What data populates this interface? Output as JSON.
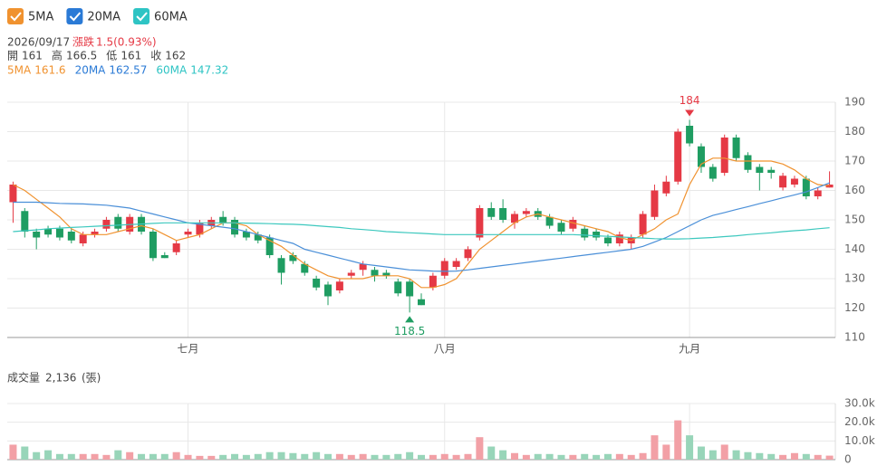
{
  "legend": [
    "5MA",
    "20MA",
    "60MA"
  ],
  "header": {
    "date": "2026/09/17",
    "change_label": "漲跌",
    "change": "1.5(0.93%)",
    "ohlc": [
      {
        "label": "開",
        "value": 161
      },
      {
        "label": "高",
        "value": 166.5
      },
      {
        "label": "低",
        "value": 161
      },
      {
        "label": "收",
        "value": 162
      }
    ],
    "ma": [
      {
        "label": "5MA",
        "value": 161.6,
        "color": "#f0922f"
      },
      {
        "label": "20MA",
        "value": 162.57,
        "color": "#2a7ad6"
      },
      {
        "label": "60MA",
        "value": 147.32,
        "color": "#2ec4c4"
      }
    ]
  },
  "chart_data": [
    {
      "type": "candlestick",
      "categories": [
        null,
        null,
        null,
        null,
        null,
        null,
        null,
        null,
        null,
        null,
        null,
        null,
        null,
        null,
        null,
        "七月",
        null,
        null,
        null,
        null,
        null,
        null,
        null,
        null,
        null,
        null,
        null,
        null,
        null,
        null,
        null,
        null,
        null,
        null,
        null,
        null,
        null,
        "八月",
        null,
        null,
        null,
        null,
        null,
        null,
        null,
        null,
        null,
        null,
        null,
        null,
        null,
        null,
        null,
        null,
        null,
        null,
        null,
        null,
        "九月",
        null,
        null,
        null,
        null,
        null,
        null,
        null,
        null,
        null,
        null,
        null,
        null
      ],
      "open": [
        156,
        153,
        146,
        147,
        147,
        146,
        142,
        145,
        147,
        151,
        146,
        151,
        146,
        138,
        139,
        145,
        145,
        148,
        151,
        150,
        146,
        145,
        144,
        137,
        138,
        135,
        130,
        128,
        126,
        131,
        133,
        133,
        132,
        129,
        129,
        123,
        127,
        131,
        134,
        137,
        144,
        154,
        154,
        149,
        152,
        153,
        151,
        149,
        147,
        147,
        146,
        144,
        142,
        142,
        145,
        151,
        159,
        163,
        182,
        175,
        168,
        166,
        178,
        172,
        168,
        167,
        161,
        162,
        164,
        158,
        161
      ],
      "high": [
        163,
        154,
        147,
        148,
        148,
        147,
        146,
        147,
        151,
        152,
        152,
        152,
        147,
        139,
        143,
        147,
        150,
        151,
        153,
        151,
        147,
        146,
        145,
        138,
        139,
        136,
        131,
        129,
        130,
        133,
        136,
        134,
        133,
        130,
        130,
        125,
        132,
        137,
        137,
        141,
        155,
        156,
        157,
        153,
        154,
        154,
        152,
        150,
        151,
        148,
        147,
        145,
        146,
        145,
        153,
        162,
        165,
        181,
        184,
        176,
        169,
        179,
        179,
        173,
        169,
        168,
        166,
        165,
        165,
        161,
        166.5
      ],
      "low": [
        149,
        144,
        140,
        144,
        143,
        142,
        141,
        144,
        146,
        146,
        145,
        145,
        136,
        137,
        138,
        144,
        144,
        147,
        148,
        144,
        143,
        142,
        137,
        128,
        135,
        131,
        126,
        121,
        125,
        130,
        131,
        129,
        130,
        124,
        118.5,
        121,
        126,
        130,
        133,
        136,
        143,
        150,
        149,
        147,
        151,
        150,
        147,
        145,
        146,
        143,
        143,
        141,
        141,
        140,
        144,
        150,
        158,
        162,
        175,
        166,
        163,
        165,
        170,
        166,
        160,
        164,
        160,
        161,
        157,
        157,
        161
      ],
      "close": [
        162,
        146,
        144,
        145,
        144,
        143,
        145,
        146,
        150,
        147,
        151,
        146,
        137,
        137,
        142,
        146,
        149,
        150,
        149,
        145,
        144,
        143,
        138,
        132,
        136,
        132,
        127,
        124,
        129,
        132,
        135,
        131,
        131,
        125,
        124,
        121,
        131,
        136,
        136,
        140,
        154,
        151,
        150,
        152,
        153,
        151,
        148,
        146,
        150,
        144,
        144,
        142,
        145,
        144,
        152,
        160,
        163,
        180,
        176,
        168,
        164,
        178,
        171,
        167,
        166,
        166,
        165,
        164,
        158,
        160,
        162
      ],
      "up_color": "#e53945",
      "down_color": "#1f9d62",
      "series": [
        {
          "name": "5MA",
          "color": "#f0922f",
          "values": [
            162,
            160,
            157,
            154,
            151,
            147,
            145,
            145,
            145,
            146,
            147,
            148,
            147,
            145,
            143,
            144,
            145,
            147,
            149,
            149,
            148,
            145,
            143,
            141,
            138,
            135,
            133,
            131,
            130,
            130,
            130,
            131,
            131,
            131,
            130,
            127,
            127,
            128,
            130,
            135,
            140,
            143,
            146,
            149,
            151,
            152,
            151,
            150,
            149,
            148,
            147,
            146,
            144,
            143,
            145,
            147,
            150,
            152,
            162,
            169,
            171,
            171,
            170,
            170,
            170,
            170,
            169,
            167,
            164,
            162,
            161.6
          ]
        },
        {
          "name": "20MA",
          "color": "#4a8fd8",
          "values": [
            156,
            156,
            156,
            155.8,
            155.6,
            155.5,
            155.4,
            155.2,
            155,
            154.5,
            154,
            153,
            152,
            151,
            150,
            149,
            148.5,
            148,
            147.5,
            147,
            146,
            145,
            144,
            143,
            142,
            140,
            139,
            138,
            137,
            136,
            135,
            134.5,
            134,
            133.5,
            133,
            132.8,
            132.6,
            132.5,
            132.6,
            133,
            133.5,
            134,
            134.5,
            135,
            135.5,
            136,
            136.5,
            137,
            137.5,
            138,
            138.5,
            139,
            139.5,
            140,
            141,
            142.5,
            144,
            146,
            148,
            150,
            151.5,
            152.5,
            153.5,
            154.5,
            155.5,
            156.5,
            157.5,
            158.5,
            159.5,
            161,
            162.57
          ]
        },
        {
          "name": "60MA",
          "color": "#3cc8be",
          "values": [
            146,
            146.3,
            146.6,
            147,
            147.2,
            147.4,
            147.6,
            147.8,
            148,
            148.2,
            148.4,
            148.6,
            148.8,
            149,
            149,
            149,
            149,
            149,
            149,
            149,
            148.9,
            148.8,
            148.7,
            148.6,
            148.5,
            148.3,
            148,
            147.7,
            147.4,
            147,
            146.7,
            146.4,
            146,
            145.8,
            145.6,
            145.4,
            145.2,
            145,
            145,
            145,
            145,
            145,
            145,
            145,
            145,
            145,
            145,
            145,
            145,
            144.8,
            144.6,
            144.4,
            144.2,
            144,
            143.8,
            143.6,
            143.5,
            143.5,
            143.6,
            143.8,
            144,
            144.3,
            144.6,
            145,
            145.3,
            145.6,
            146,
            146.3,
            146.6,
            147,
            147.32
          ]
        }
      ],
      "ylim": [
        110,
        190
      ],
      "yticks": [
        110,
        120,
        130,
        140,
        150,
        160,
        170,
        180,
        190
      ],
      "grid": true
    },
    {
      "type": "bar",
      "title": "成交量",
      "current": "2,136",
      "unit": "(張)",
      "values": [
        8000,
        7000,
        4000,
        5000,
        3000,
        3000,
        3000,
        3000,
        2500,
        5000,
        4000,
        3000,
        3000,
        3000,
        4000,
        2500,
        2000,
        2000,
        2500,
        3000,
        2500,
        3000,
        4000,
        4000,
        3500,
        3000,
        4000,
        3000,
        3000,
        2500,
        3000,
        2500,
        2500,
        3000,
        4000,
        2500,
        2500,
        3000,
        2500,
        3000,
        12000,
        7000,
        5000,
        3500,
        2500,
        3000,
        3000,
        2500,
        2500,
        3000,
        2500,
        3000,
        3000,
        2500,
        3500,
        13000,
        8000,
        21000,
        13000,
        7000,
        5000,
        8000,
        5000,
        4000,
        3500,
        3000,
        2500,
        3500,
        3000,
        2500,
        2136
      ],
      "up_color": "#f2a0a6",
      "down_color": "#98d5b9",
      "ylim": [
        0,
        30000
      ],
      "yticks": [
        0,
        {
          "value": 10000,
          "label": "10.0k"
        },
        {
          "value": 20000,
          "label": "20.0k"
        },
        {
          "value": 30000,
          "label": "30.0k"
        }
      ],
      "grid": true
    }
  ]
}
